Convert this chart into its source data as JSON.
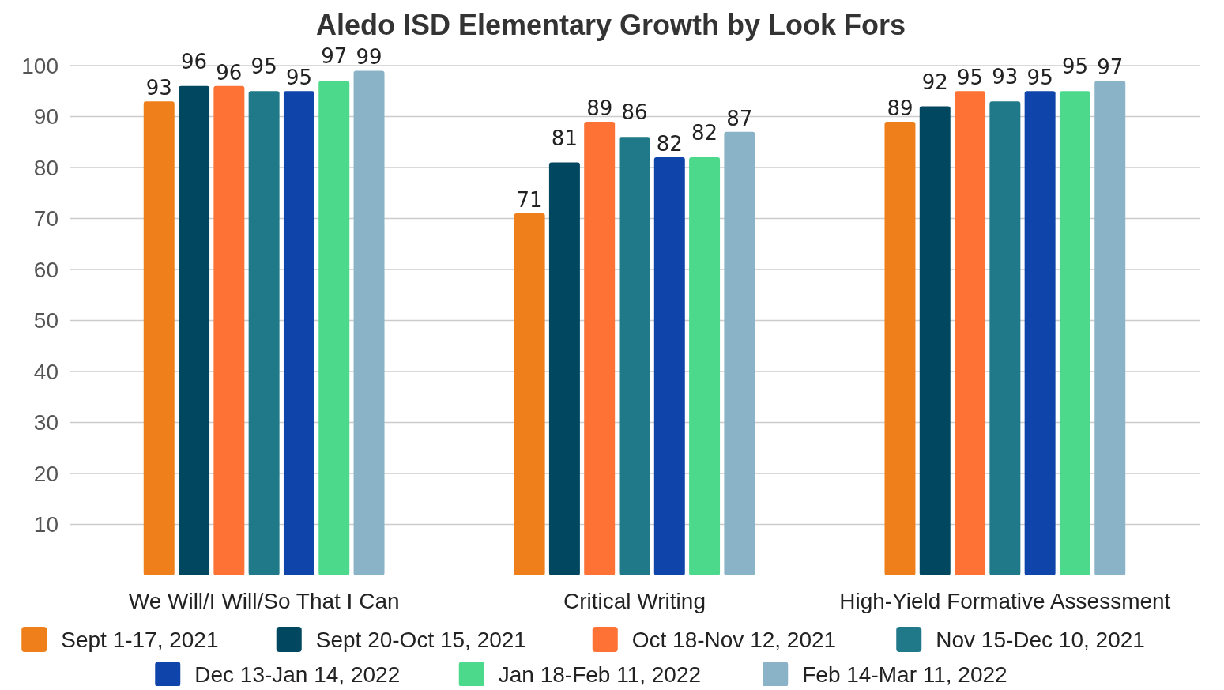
{
  "chart_data": {
    "type": "bar",
    "title": "Aledo ISD Elementary Growth by Look Fors",
    "categories": [
      "We Will/I Will/So That I Can",
      "Critical Writing",
      "High-Yield Formative Assessment"
    ],
    "series": [
      {
        "name": "Sept 1-17, 2021",
        "color": "#ee7f1b",
        "values": [
          93,
          71,
          89
        ]
      },
      {
        "name": "Sept 20-Oct 15, 2021",
        "color": "#01475f",
        "values": [
          96,
          81,
          92
        ]
      },
      {
        "name": "Oct 18-Nov 12, 2021",
        "color": "#fe7235",
        "values": [
          96,
          89,
          95
        ]
      },
      {
        "name": "Nov 15-Dec 10, 2021",
        "color": "#1f7988",
        "values": [
          95,
          86,
          93
        ]
      },
      {
        "name": "Dec 13-Jan 14, 2022",
        "color": "#0f45ab",
        "values": [
          95,
          82,
          95
        ]
      },
      {
        "name": "Jan 18-Feb 11, 2022",
        "color": "#4cd98b",
        "values": [
          97,
          82,
          95
        ]
      },
      {
        "name": "Feb 14-Mar 11, 2022",
        "color": "#8bb3c7",
        "values": [
          99,
          87,
          97
        ]
      }
    ],
    "ylim": [
      0,
      100
    ],
    "yticks": [
      10,
      20,
      30,
      40,
      50,
      60,
      70,
      80,
      90,
      100
    ],
    "grid": "y",
    "legend": "bottom",
    "data_labels": true
  }
}
